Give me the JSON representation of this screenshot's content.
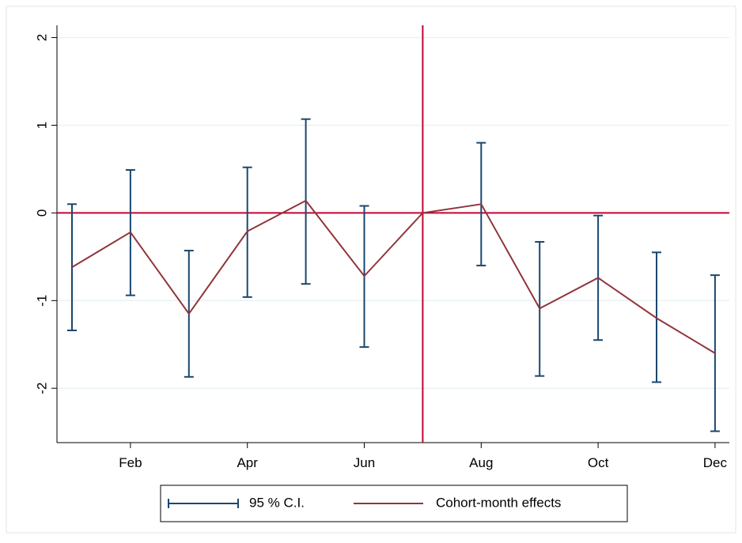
{
  "chart_data": {
    "type": "errorbar-line",
    "categories": [
      null,
      "Feb",
      null,
      "Apr",
      null,
      "Jun",
      null,
      "Aug",
      null,
      "Oct",
      null,
      "Dec"
    ],
    "series": [
      {
        "name": "95 % C.I.",
        "color": "#1a476f",
        "lower": [
          -1.34,
          -0.94,
          -1.87,
          -0.96,
          -0.81,
          -1.53,
          null,
          -0.6,
          -1.86,
          -1.45,
          -1.93,
          -2.49
        ],
        "upper": [
          0.1,
          0.49,
          -0.43,
          0.52,
          1.07,
          0.08,
          null,
          0.8,
          -0.33,
          -0.03,
          -0.45,
          -0.71
        ]
      },
      {
        "name": "Cohort-month effects",
        "color": "#90353b",
        "values": [
          -0.62,
          -0.22,
          -1.15,
          -0.21,
          0.14,
          -0.72,
          0,
          0.1,
          -1.09,
          -0.74,
          -1.2,
          -1.6
        ]
      }
    ],
    "ylim": [
      -2.62,
      2.14
    ],
    "yticks": [
      -2,
      -1,
      0,
      1,
      2
    ],
    "grid": true,
    "hline": 0,
    "vline_category": 6,
    "reference_color": "#c10534",
    "legend": "bottom"
  }
}
